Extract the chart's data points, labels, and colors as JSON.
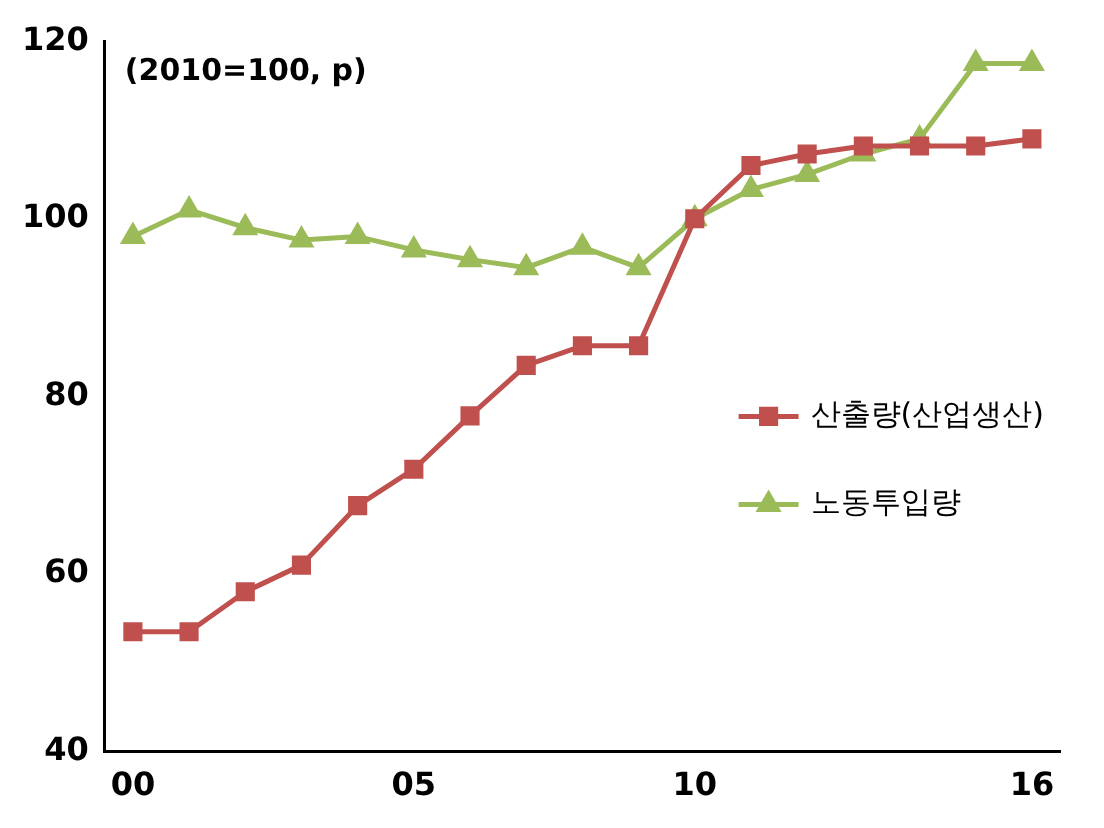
{
  "chart_data": {
    "type": "line",
    "categories": [
      "00",
      null,
      null,
      null,
      null,
      "05",
      null,
      null,
      null,
      null,
      "10",
      null,
      null,
      null,
      null,
      null,
      "16"
    ],
    "series": [
      {
        "name": "산출량(산업생산)",
        "color": "#c0504d",
        "marker": "square",
        "values": [
          53.5,
          53.5,
          58,
          61,
          67.7,
          71.8,
          77.8,
          83.5,
          85.7,
          85.7,
          100,
          106,
          107.3,
          108.2,
          108.2,
          108.2,
          109
        ]
      },
      {
        "name": "노동투입량",
        "color": "#9bbb59",
        "marker": "triangle",
        "values": [
          98,
          101,
          99,
          97.6,
          98,
          96.5,
          95.4,
          94.5,
          96.8,
          94.5,
          100,
          103.3,
          105,
          107.3,
          109,
          117.5,
          117.5
        ]
      }
    ],
    "ylim": [
      40,
      120
    ],
    "yticks": [
      40,
      60,
      80,
      100,
      120
    ],
    "grid": false,
    "legend": "right",
    "line_style": "solid",
    "annotations": [
      "(2010=100, p)"
    ]
  }
}
